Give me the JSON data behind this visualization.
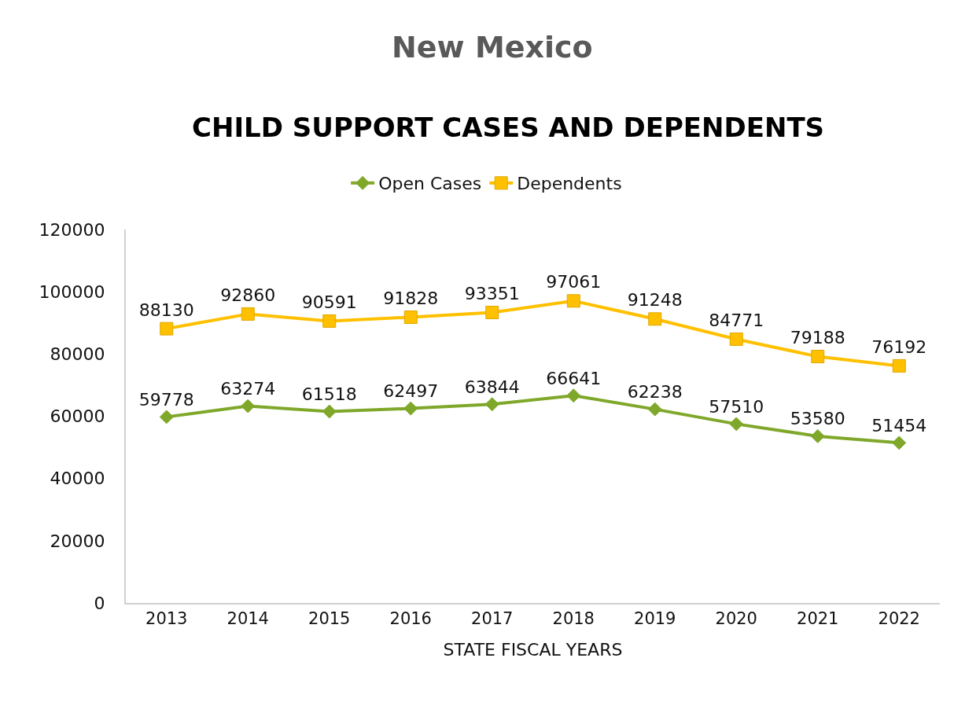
{
  "chart_data": {
    "type": "line",
    "title": "New Mexico",
    "subtitle": "CHILD SUPPORT CASES AND DEPENDENTS",
    "xlabel": "STATE FISCAL YEARS",
    "categories": [
      "2013",
      "2014",
      "2015",
      "2016",
      "2017",
      "2018",
      "2019",
      "2020",
      "2021",
      "2022"
    ],
    "series": [
      {
        "name": "Open Cases",
        "color": "#7fa82a",
        "marker": "diamond",
        "values": [
          59778,
          63274,
          61518,
          62497,
          63844,
          66641,
          62238,
          57510,
          53580,
          51454
        ]
      },
      {
        "name": "Dependents",
        "color": "#ffc000",
        "marker": "square",
        "values": [
          88130,
          92860,
          90591,
          91828,
          93351,
          97061,
          91248,
          84771,
          79188,
          76192
        ]
      }
    ],
    "ylim": [
      0,
      120000
    ],
    "yticks": [
      0,
      20000,
      40000,
      60000,
      80000,
      100000,
      120000
    ],
    "data_labels": true,
    "legend": "top",
    "line_style": "solid"
  }
}
